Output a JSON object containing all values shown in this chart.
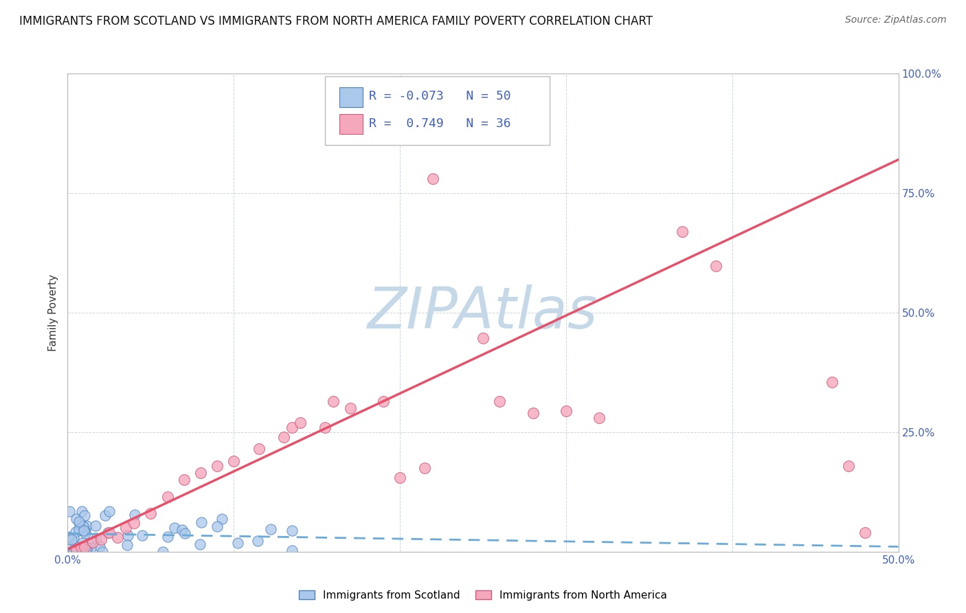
{
  "title": "IMMIGRANTS FROM SCOTLAND VS IMMIGRANTS FROM NORTH AMERICA FAMILY POVERTY CORRELATION CHART",
  "source": "Source: ZipAtlas.com",
  "ylabel": "Family Poverty",
  "x_min": 0.0,
  "x_max": 0.5,
  "y_min": 0.0,
  "y_max": 1.0,
  "x_ticks": [
    0.0,
    0.1,
    0.2,
    0.3,
    0.4,
    0.5
  ],
  "x_tick_labels": [
    "0.0%",
    "",
    "",
    "",
    "",
    "50.0%"
  ],
  "y_ticks": [
    0.0,
    0.25,
    0.5,
    0.75,
    1.0
  ],
  "y_tick_labels_right": [
    "",
    "25.0%",
    "50.0%",
    "75.0%",
    "100.0%"
  ],
  "scotland_R": -0.073,
  "scotland_N": 50,
  "northamerica_R": 0.749,
  "northamerica_N": 36,
  "scotland_color": "#aac8ea",
  "northamerica_color": "#f5a8bc",
  "scotland_edge_color": "#4a80c0",
  "northamerica_edge_color": "#d05878",
  "regression_scotland_color": "#6aaad8",
  "regression_northamerica_color": "#e8506a",
  "background_color": "#ffffff",
  "grid_color": "#c8d4e0",
  "watermark_color": "#c5d8e8",
  "tick_color": "#4060c0",
  "title_fontsize": 12,
  "axis_label_fontsize": 11,
  "tick_fontsize": 11,
  "legend_fontsize": 13,
  "source_fontsize": 10,
  "na_regression_intercept": 0.005,
  "na_regression_slope": 1.63,
  "scot_regression_intercept": 0.038,
  "scot_regression_slope": -0.055
}
